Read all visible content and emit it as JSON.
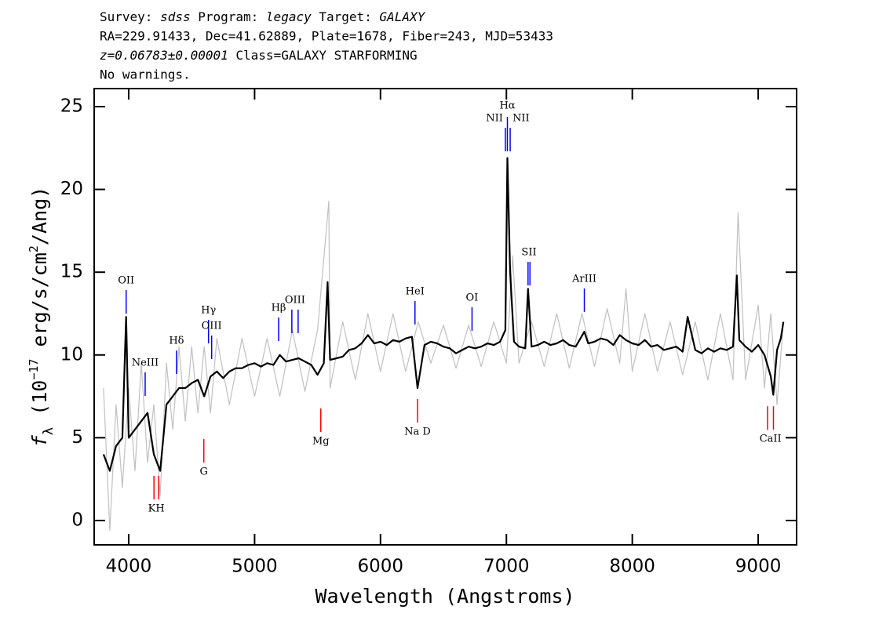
{
  "chart_data": {
    "type": "line",
    "header": [
      [
        {
          "text": "Survey: ",
          "italic": false
        },
        {
          "text": "sdss",
          "italic": true
        },
        {
          "text": " Program: ",
          "italic": false
        },
        {
          "text": "legacy",
          "italic": true
        },
        {
          "text": " Target: ",
          "italic": false
        },
        {
          "text": "GALAXY",
          "italic": true
        }
      ],
      [
        {
          "text": "RA=229.91433, Dec=41.62889, Plate=1678, Fiber=243, MJD=53433",
          "italic": false
        }
      ],
      [
        {
          "text": "z=0.06783±0.00001",
          "italic": true
        },
        {
          "text": " Class=GALAXY STARFORMING",
          "italic": false
        }
      ],
      [
        {
          "text": "No warnings.",
          "italic": false
        }
      ]
    ],
    "xlabel": "Wavelength (Angstroms)",
    "ylabel": [
      {
        "text": "f",
        "shift": "none",
        "italic": true
      },
      {
        "text": "λ",
        "shift": "sub",
        "italic": false
      },
      {
        "text": " (10",
        "shift": "none",
        "italic": false
      },
      {
        "text": "−17",
        "shift": "super",
        "italic": false
      },
      {
        "text": " erg/s/cm",
        "shift": "none",
        "italic": false
      },
      {
        "text": "2",
        "shift": "super",
        "italic": false
      },
      {
        "text": "/Ang)",
        "shift": "none",
        "italic": false
      }
    ],
    "xlim": [
      3726,
      9305
    ],
    "ylim": [
      -1.47,
      26.09
    ],
    "xticks": [
      4000,
      5000,
      6000,
      7000,
      8000,
      9000
    ],
    "yticks": [
      0,
      5,
      10,
      15,
      20,
      25
    ],
    "series": [
      {
        "name": "noisy flux",
        "color": "#c0c0c0",
        "x": [
          3800,
          3850,
          3900,
          3950,
          4000,
          4050,
          4100,
          4150,
          4200,
          4250,
          4300,
          4350,
          4400,
          4450,
          4500,
          4550,
          4600,
          4650,
          4700,
          4800,
          4900,
          5000,
          5100,
          5200,
          5300,
          5400,
          5500,
          5590,
          5600,
          5700,
          5800,
          5900,
          6000,
          6100,
          6200,
          6300,
          6400,
          6500,
          6600,
          6700,
          6800,
          6900,
          7000,
          7050,
          7100,
          7200,
          7300,
          7400,
          7500,
          7600,
          7700,
          7800,
          7900,
          7950,
          8000,
          8100,
          8200,
          8300,
          8400,
          8500,
          8600,
          8700,
          8800,
          8840,
          8900,
          9000,
          9050,
          9100,
          9150,
          9200
        ],
        "values": [
          8,
          -0.6,
          7,
          2,
          8,
          3,
          9.5,
          3.5,
          7,
          1.5,
          9.5,
          5.5,
          10.5,
          6,
          10.5,
          6.5,
          10.5,
          6.5,
          11,
          7,
          11,
          7.5,
          11,
          7.5,
          11.5,
          7.8,
          11.5,
          19.3,
          8,
          12,
          8.5,
          12.5,
          9,
          12.5,
          9,
          12,
          9.5,
          11.8,
          9.2,
          11.8,
          9.3,
          12,
          9.5,
          16,
          9.5,
          12,
          9.3,
          12.5,
          9.2,
          12.5,
          9.3,
          12.8,
          9.5,
          14,
          9,
          12.5,
          9,
          12,
          8.8,
          12,
          8.5,
          12.5,
          8.5,
          18.6,
          8.5,
          13,
          8,
          12.5,
          7,
          12
        ]
      },
      {
        "name": "flux",
        "color": "#000000",
        "x": [
          3800,
          3850,
          3900,
          3950,
          3980,
          4000,
          4050,
          4100,
          4150,
          4200,
          4250,
          4300,
          4350,
          4400,
          4450,
          4500,
          4550,
          4600,
          4650,
          4700,
          4750,
          4800,
          4850,
          4900,
          4950,
          5000,
          5050,
          5100,
          5150,
          5200,
          5250,
          5300,
          5350,
          5400,
          5450,
          5500,
          5550,
          5580,
          5600,
          5650,
          5700,
          5750,
          5800,
          5850,
          5900,
          5950,
          6000,
          6050,
          6100,
          6150,
          6200,
          6250,
          6294,
          6350,
          6400,
          6450,
          6500,
          6550,
          6600,
          6650,
          6700,
          6750,
          6800,
          6850,
          6900,
          6950,
          6992,
          7008,
          7030,
          7060,
          7100,
          7150,
          7172,
          7200,
          7250,
          7300,
          7350,
          7400,
          7450,
          7500,
          7550,
          7619,
          7650,
          7700,
          7750,
          7800,
          7850,
          7900,
          7950,
          8000,
          8050,
          8100,
          8150,
          8200,
          8250,
          8300,
          8350,
          8400,
          8440,
          8500,
          8550,
          8600,
          8650,
          8700,
          8750,
          8800,
          8830,
          8850,
          8900,
          8950,
          9000,
          9050,
          9100,
          9120,
          9150,
          9180,
          9200
        ],
        "values": [
          4,
          3,
          4.5,
          5,
          12.3,
          5,
          5.5,
          6,
          6.5,
          4,
          3,
          7,
          7.5,
          8,
          8,
          8.3,
          8.5,
          7.5,
          8.7,
          9,
          8.6,
          9,
          9.2,
          9.2,
          9.4,
          9.5,
          9.3,
          9.5,
          9.4,
          10,
          9.6,
          9.7,
          9.8,
          9.6,
          9.4,
          8.8,
          9.5,
          14.4,
          9.7,
          9.8,
          9.9,
          10.3,
          10.4,
          10.7,
          11.2,
          10.7,
          10.8,
          10.6,
          10.9,
          10.8,
          11,
          11.1,
          8,
          10.6,
          10.8,
          10.7,
          10.5,
          10.4,
          10.1,
          10.3,
          10.5,
          10.4,
          10.5,
          10.7,
          10.6,
          10.8,
          11.5,
          21.9,
          15,
          10.8,
          10.5,
          10.4,
          14,
          10.5,
          10.6,
          10.8,
          10.6,
          10.7,
          10.9,
          10.6,
          10.5,
          11.4,
          10.7,
          10.8,
          11,
          10.9,
          10.6,
          11.2,
          10.9,
          10.7,
          10.6,
          10.9,
          10.5,
          10.6,
          10.3,
          10.4,
          10.5,
          10.2,
          12.3,
          10.3,
          10.1,
          10.4,
          10.2,
          10.4,
          10.3,
          10.5,
          14.8,
          10.9,
          10.5,
          10.2,
          10.6,
          10,
          8.7,
          7.6,
          10.3,
          11,
          12
        ]
      }
    ],
    "annotations": [
      {
        "label": "OII",
        "x": [
          3980
        ],
        "y": 12.5,
        "color": "#0000ff",
        "align": "center"
      },
      {
        "label": "NeIII",
        "x": [
          4131
        ],
        "y": 7.53,
        "color": "#0000ff",
        "align": "center"
      },
      {
        "label": "Hδ",
        "x": [
          4380
        ],
        "y": 8.85,
        "color": "#0000ff",
        "align": "center"
      },
      {
        "label": "Hγ",
        "x": [
          4634
        ],
        "y": 10.7,
        "color": "#0000ff",
        "align": "center"
      },
      {
        "label": "OIII",
        "x": [
          4659
        ],
        "y": 9.75,
        "color": "#0000ff",
        "align": "center"
      },
      {
        "label": "Hβ",
        "x": [
          5191
        ],
        "y": 10.84,
        "color": "#0000ff",
        "align": "center"
      },
      {
        "label": "OIII",
        "x": [
          5296,
          5346
        ],
        "y": 11.32,
        "color": "#0000ff",
        "align": "center"
      },
      {
        "label": "HeI",
        "x": [
          6274
        ],
        "y": 11.84,
        "color": "#0000ff",
        "align": "center"
      },
      {
        "label": "OI",
        "x": [
          6727
        ],
        "y": 11.46,
        "color": "#0000ff",
        "align": "center"
      },
      {
        "label": "NII",
        "x": [
          6992
        ],
        "y": 22.3,
        "color": "#0000ff",
        "align": "left"
      },
      {
        "label": "Hα",
        "x": [
          7008
        ],
        "y": 22.3,
        "color": "#0000ff",
        "align": "above"
      },
      {
        "label": "NII",
        "x": [
          7030
        ],
        "y": 22.3,
        "color": "#0000ff",
        "align": "right"
      },
      {
        "label": "SII",
        "x": [
          7172,
          7187
        ],
        "y": 14.2,
        "color": "#0000ff",
        "align": "center"
      },
      {
        "label": "ArIII",
        "x": [
          7619
        ],
        "y": 12.6,
        "color": "#0000ff",
        "align": "center"
      },
      {
        "label": "KH",
        "x": [
          4201,
          4238
        ],
        "y": 2.7,
        "color": "#ff0000",
        "align": "center"
      },
      {
        "label": "G",
        "x": [
          4597
        ],
        "y": 4.92,
        "color": "#ff0000",
        "align": "center"
      },
      {
        "label": "Mg",
        "x": [
          5526
        ],
        "y": 6.77,
        "color": "#ff0000",
        "align": "center"
      },
      {
        "label": "Na D",
        "x": [
          6294
        ],
        "y": 7.34,
        "color": "#ff0000",
        "align": "center"
      },
      {
        "label": "CaII",
        "x": [
          9074,
          9121
        ],
        "y": 6.9,
        "color": "#ff0000",
        "align": "center"
      }
    ]
  }
}
